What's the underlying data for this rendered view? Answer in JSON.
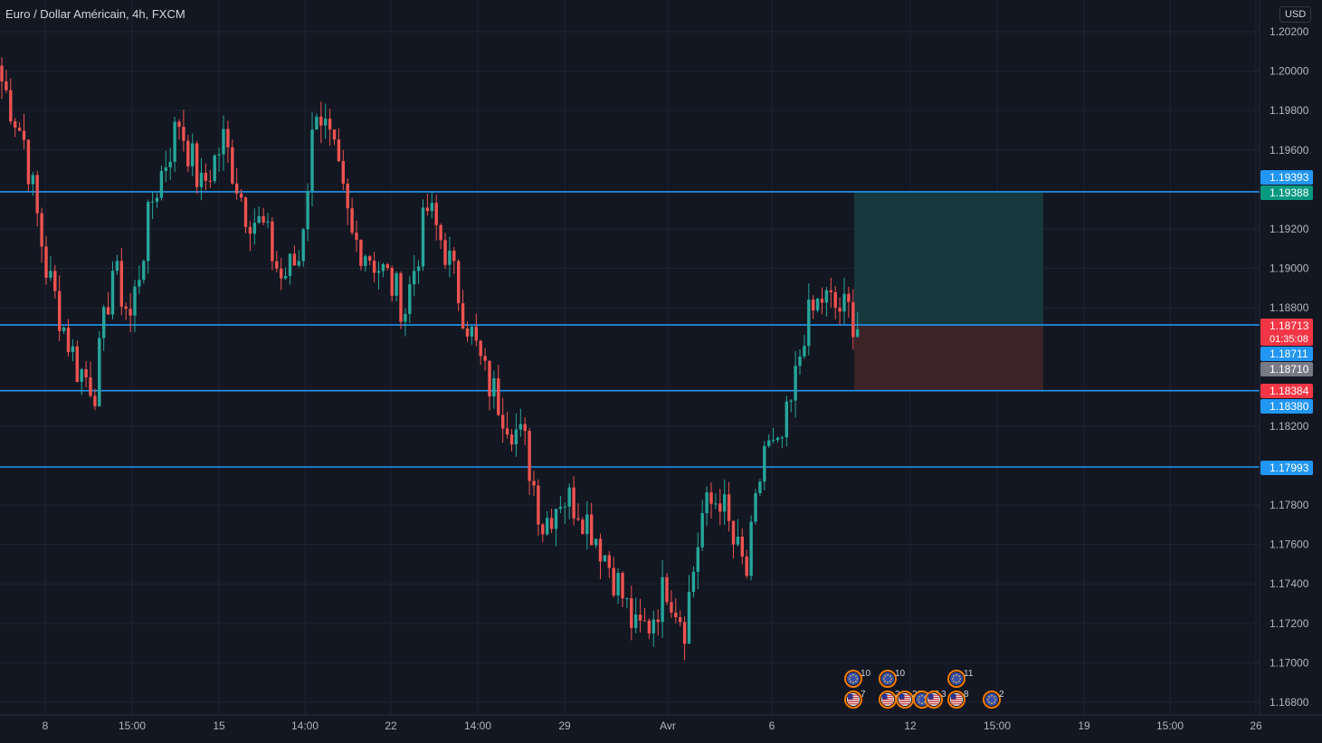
{
  "symbol": {
    "title": "Euro / Dollar Américain, 4h, FXCM",
    "currency": "USD"
  },
  "colors": {
    "background": "#131722",
    "grid": "#1f2330",
    "up": "#26a69a",
    "down": "#ef5350",
    "hline": "#2196f3",
    "text": "#b2b5be",
    "target_zone": "#163a3e",
    "stop_zone": "#3d2428"
  },
  "chart_data": {
    "type": "candlestick",
    "ylim": [
      1.1675,
      1.203
    ],
    "y_ticks": [
      "1.20200",
      "1.20000",
      "1.19800",
      "1.19600",
      "1.19200",
      "1.19000",
      "1.18800",
      "1.18200",
      "1.17800",
      "1.17600",
      "1.17400",
      "1.17200",
      "1.17000",
      "1.16800"
    ],
    "x_ticks": [
      "8",
      "15:00",
      "15",
      "14:00",
      "22",
      "14:00",
      "29",
      "Avr",
      "6",
      "12",
      "15:00",
      "19",
      "15:00",
      "26"
    ],
    "horizontal_lines": [
      1.19388,
      1.18713,
      1.1838,
      1.17993
    ],
    "price_labels": [
      {
        "text": "1.19393",
        "kind": "blue"
      },
      {
        "text": "1.19388",
        "kind": "green"
      },
      {
        "text": "1.18713",
        "subtext": "01:35:08",
        "kind": "red"
      },
      {
        "text": "1.18711",
        "kind": "blue"
      },
      {
        "text": "1.18710",
        "kind": "gray"
      },
      {
        "text": "1.18384",
        "kind": "red"
      },
      {
        "text": "1.18380",
        "kind": "blue"
      },
      {
        "text": "1.17993",
        "kind": "blue"
      }
    ],
    "position": {
      "entry": 1.18713,
      "target": 1.19388,
      "stop": 1.18384
    },
    "anchors": [
      [
        0,
        1.1995
      ],
      [
        5,
        1.1965
      ],
      [
        10,
        1.19
      ],
      [
        14,
        1.187
      ],
      [
        17,
        1.185
      ],
      [
        21,
        1.184
      ],
      [
        25,
        1.19
      ],
      [
        29,
        1.1875
      ],
      [
        34,
        1.1935
      ],
      [
        40,
        1.1975
      ],
      [
        45,
        1.194
      ],
      [
        50,
        1.1965
      ],
      [
        55,
        1.193
      ],
      [
        59,
        1.192
      ],
      [
        63,
        1.1895
      ],
      [
        67,
        1.1905
      ],
      [
        71,
        1.1985
      ],
      [
        75,
        1.1955
      ],
      [
        79,
        1.1915
      ],
      [
        82,
        1.191
      ],
      [
        87,
        1.1895
      ],
      [
        91,
        1.188
      ],
      [
        96,
        1.193
      ],
      [
        100,
        1.191
      ],
      [
        104,
        1.188
      ],
      [
        109,
        1.1845
      ],
      [
        114,
        1.1825
      ],
      [
        118,
        1.181
      ],
      [
        122,
        1.177
      ],
      [
        126,
        1.1785
      ],
      [
        130,
        1.178
      ],
      [
        134,
        1.1765
      ],
      [
        139,
        1.174
      ],
      [
        143,
        1.1715
      ],
      [
        146,
        1.172
      ],
      [
        150,
        1.174
      ],
      [
        154,
        1.172
      ],
      [
        158,
        1.1775
      ],
      [
        162,
        1.1785
      ],
      [
        165,
        1.176
      ],
      [
        168,
        1.1745
      ],
      [
        172,
        1.181
      ],
      [
        175,
        1.1805
      ],
      [
        178,
        1.183
      ],
      [
        181,
        1.187
      ],
      [
        185,
        1.1885
      ],
      [
        188,
        1.188
      ],
      [
        191,
        1.1878
      ],
      [
        193,
        1.1872
      ]
    ],
    "events": [
      {
        "flag": "eu",
        "count": "10",
        "row": 1
      },
      {
        "flag": "eu",
        "count": "10",
        "row": 1
      },
      {
        "flag": "eu",
        "count": "11",
        "row": 1
      },
      {
        "flag": "us",
        "count": "7",
        "row": 2
      },
      {
        "flag": "us",
        "count": "2",
        "row": 2
      },
      {
        "flag": "us",
        "count": "20",
        "row": 2
      },
      {
        "flag": "eu",
        "count": "12",
        "row": 2
      },
      {
        "flag": "us",
        "count": "3",
        "row": 2
      },
      {
        "flag": "us",
        "count": "8",
        "row": 2
      },
      {
        "flag": "eu",
        "count": "2",
        "row": 2
      }
    ]
  }
}
